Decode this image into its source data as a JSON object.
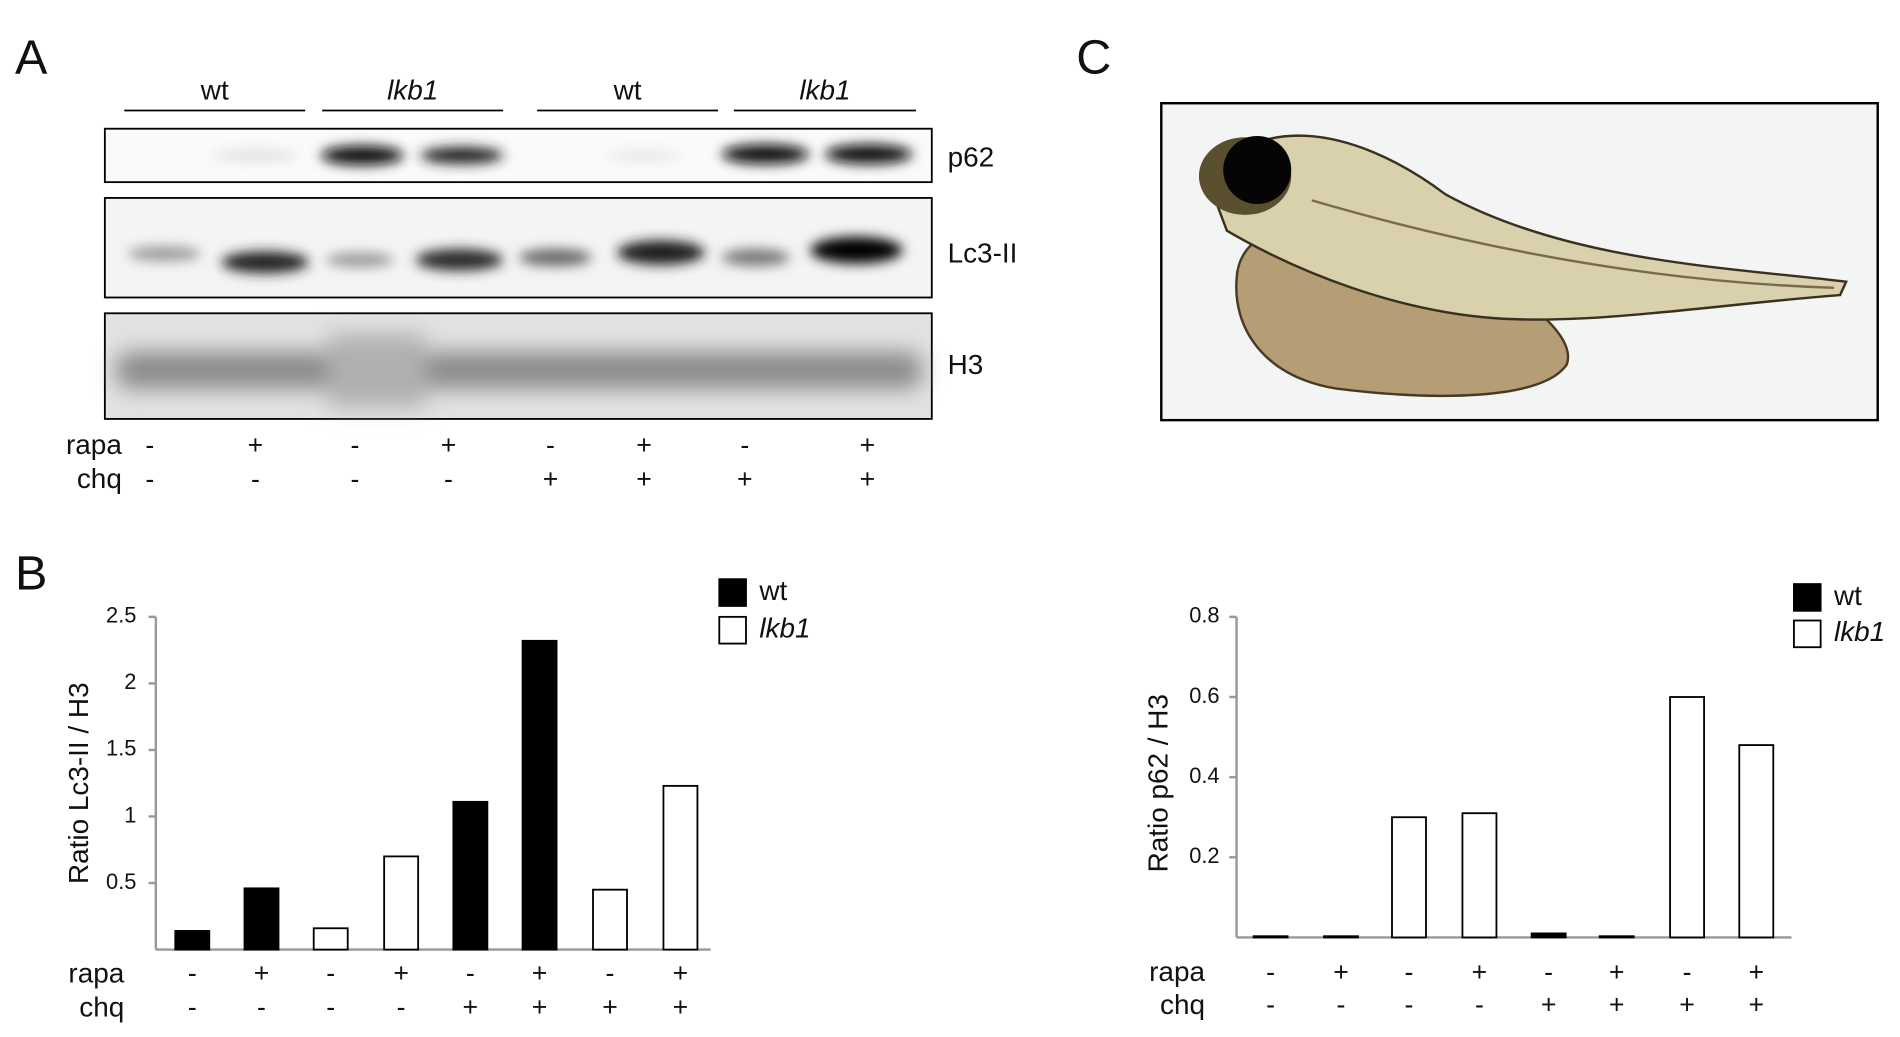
{
  "figure": {
    "panel_a": {
      "label": "A",
      "groups": [
        "wt",
        "lkb1",
        "wt",
        "lkb1"
      ],
      "blots": [
        "p62",
        "Lc3-II",
        "H3"
      ],
      "rows": [
        {
          "label": "rapa",
          "signs": [
            "-",
            "+",
            "-",
            "+",
            "-",
            "+",
            "-",
            "+"
          ]
        },
        {
          "label": "chq",
          "signs": [
            "-",
            "-",
            "-",
            "-",
            "+",
            "+",
            "+",
            "+"
          ]
        }
      ]
    },
    "panel_c": {
      "label": "C"
    }
  },
  "chart_data": [
    {
      "type": "bar",
      "label": "B",
      "ylabel": "Ratio Lc3-II / H3",
      "ylim": [
        0,
        2.5
      ],
      "yticks": [
        0.5,
        1,
        1.5,
        2,
        2.5
      ],
      "series": [
        {
          "name": "wt",
          "color": "#000000",
          "values": [
            0.14,
            0.46,
            null,
            null,
            1.11,
            2.32,
            null,
            null
          ]
        },
        {
          "name": "lkb1",
          "color": "#ffffff",
          "values": [
            null,
            null,
            0.16,
            0.7,
            null,
            null,
            0.45,
            1.23
          ]
        }
      ],
      "rows": [
        {
          "label": "rapa",
          "signs": [
            "-",
            "+",
            "-",
            "+",
            "-",
            "+",
            "-",
            "+"
          ]
        },
        {
          "label": "chq",
          "signs": [
            "-",
            "-",
            "-",
            "-",
            "+",
            "+",
            "+",
            "+"
          ]
        }
      ]
    },
    {
      "type": "bar",
      "ylabel": "Ratio p62 / H3",
      "ylim": [
        0,
        0.8
      ],
      "yticks": [
        0.2,
        0.4,
        0.6,
        0.8
      ],
      "series": [
        {
          "name": "wt",
          "color": "#000000",
          "values": [
            0.003,
            0.003,
            null,
            null,
            0.01,
            0.003,
            null,
            null
          ]
        },
        {
          "name": "lkb1",
          "color": "#ffffff",
          "values": [
            null,
            null,
            0.3,
            0.31,
            null,
            null,
            0.6,
            0.48
          ]
        }
      ],
      "rows": [
        {
          "label": "rapa",
          "signs": [
            "-",
            "+",
            "-",
            "+",
            "-",
            "+",
            "-",
            "+"
          ]
        },
        {
          "label": "chq",
          "signs": [
            "-",
            "-",
            "-",
            "-",
            "+",
            "+",
            "+",
            "+"
          ]
        }
      ]
    }
  ]
}
